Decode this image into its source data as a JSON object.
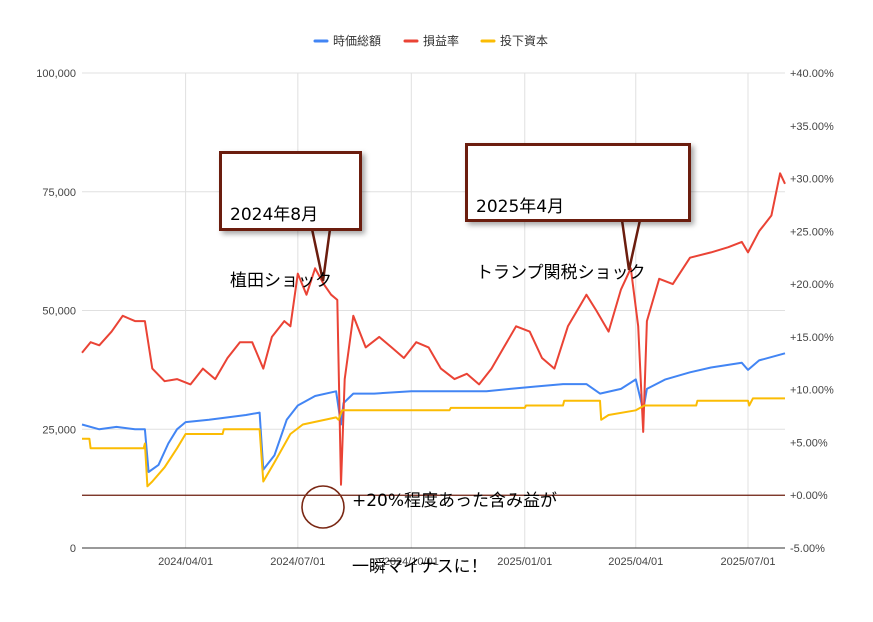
{
  "chart_data": {
    "type": "line",
    "legend": {
      "position": "top",
      "entries": [
        {
          "name": "時価総額",
          "color": "#4285f4"
        },
        {
          "name": "損益率",
          "color": "#ea4335"
        },
        {
          "name": "投下資本",
          "color": "#fbbc04"
        }
      ]
    },
    "x_ticks": [
      "2024/04/01",
      "2024/07/01",
      "2024/10/01",
      "2025/01/01",
      "2025/04/01",
      "2025/07/01"
    ],
    "y_left": {
      "range": [
        0,
        100000
      ],
      "ticks": [
        "100,000",
        "75,000",
        "50,000",
        "25,000",
        "0"
      ]
    },
    "y_right": {
      "range": [
        -5,
        40
      ],
      "ticks": [
        "+40.00%",
        "+35.00%",
        "+30.00%",
        "+25.00%",
        "+20.00%",
        "+15.00%",
        "+10.00%",
        "+5.00%",
        "+0.00%",
        "-5.00%"
      ]
    },
    "x_range": [
      "2024-01-08",
      "2025-07-31"
    ],
    "grid": true,
    "zero_line": {
      "axis": "right",
      "value": 0,
      "color": "#6b1d0e"
    },
    "series": [
      {
        "name": "時価総額",
        "axis": "left",
        "color": "#4285f4",
        "points": [
          [
            "2024-01-08",
            26000
          ],
          [
            "2024-01-22",
            25000
          ],
          [
            "2024-02-05",
            25500
          ],
          [
            "2024-02-20",
            25000
          ],
          [
            "2024-02-28",
            25000
          ],
          [
            "2024-03-02",
            16000
          ],
          [
            "2024-03-10",
            17500
          ],
          [
            "2024-03-18",
            22000
          ],
          [
            "2024-03-25",
            25000
          ],
          [
            "2024-04-01",
            26500
          ],
          [
            "2024-04-20",
            27000
          ],
          [
            "2024-05-05",
            27500
          ],
          [
            "2024-05-20",
            28000
          ],
          [
            "2024-05-31",
            28500
          ],
          [
            "2024-06-03",
            16500
          ],
          [
            "2024-06-12",
            19500
          ],
          [
            "2024-06-22",
            27000
          ],
          [
            "2024-07-01",
            30000
          ],
          [
            "2024-07-15",
            32000
          ],
          [
            "2024-08-01",
            33000
          ],
          [
            "2024-08-05",
            26000
          ],
          [
            "2024-08-07",
            30500
          ],
          [
            "2024-08-15",
            32500
          ],
          [
            "2024-09-01",
            32500
          ],
          [
            "2024-10-01",
            33000
          ],
          [
            "2024-11-01",
            33000
          ],
          [
            "2024-12-01",
            33000
          ],
          [
            "2024-12-20",
            33500
          ],
          [
            "2025-01-10",
            34000
          ],
          [
            "2025-02-01",
            34500
          ],
          [
            "2025-02-20",
            34500
          ],
          [
            "2025-03-03",
            32500
          ],
          [
            "2025-03-20",
            33500
          ],
          [
            "2025-04-01",
            35500
          ],
          [
            "2025-04-07",
            29000
          ],
          [
            "2025-04-10",
            33500
          ],
          [
            "2025-04-25",
            35500
          ],
          [
            "2025-05-15",
            37000
          ],
          [
            "2025-06-01",
            38000
          ],
          [
            "2025-06-26",
            39000
          ],
          [
            "2025-07-01",
            37500
          ],
          [
            "2025-07-10",
            39500
          ],
          [
            "2025-07-31",
            41000
          ]
        ]
      },
      {
        "name": "損益率",
        "axis": "right",
        "color": "#ea4335",
        "points": [
          [
            "2024-01-08",
            13.5
          ],
          [
            "2024-01-15",
            14.5
          ],
          [
            "2024-01-22",
            14.2
          ],
          [
            "2024-02-01",
            15.5
          ],
          [
            "2024-02-10",
            17.0
          ],
          [
            "2024-02-20",
            16.5
          ],
          [
            "2024-02-28",
            16.5
          ],
          [
            "2024-03-05",
            12.0
          ],
          [
            "2024-03-15",
            10.8
          ],
          [
            "2024-03-25",
            11.0
          ],
          [
            "2024-04-05",
            10.5
          ],
          [
            "2024-04-15",
            12.0
          ],
          [
            "2024-04-25",
            11.0
          ],
          [
            "2024-05-05",
            13.0
          ],
          [
            "2024-05-15",
            14.5
          ],
          [
            "2024-05-25",
            14.5
          ],
          [
            "2024-06-03",
            12.0
          ],
          [
            "2024-06-10",
            15.0
          ],
          [
            "2024-06-20",
            16.5
          ],
          [
            "2024-06-25",
            16.0
          ],
          [
            "2024-07-01",
            21.0
          ],
          [
            "2024-07-08",
            19.0
          ],
          [
            "2024-07-15",
            21.5
          ],
          [
            "2024-07-22",
            20.0
          ],
          [
            "2024-07-28",
            19.0
          ],
          [
            "2024-08-02",
            18.5
          ],
          [
            "2024-08-05",
            1.0
          ],
          [
            "2024-08-08",
            11.0
          ],
          [
            "2024-08-15",
            17.0
          ],
          [
            "2024-08-25",
            14.0
          ],
          [
            "2024-09-05",
            15.0
          ],
          [
            "2024-09-15",
            14.0
          ],
          [
            "2024-09-25",
            13.0
          ],
          [
            "2024-10-05",
            14.5
          ],
          [
            "2024-10-15",
            14.0
          ],
          [
            "2024-10-25",
            12.0
          ],
          [
            "2024-11-05",
            11.0
          ],
          [
            "2024-11-15",
            11.5
          ],
          [
            "2024-11-25",
            10.5
          ],
          [
            "2024-12-05",
            12.0
          ],
          [
            "2024-12-15",
            14.0
          ],
          [
            "2024-12-25",
            16.0
          ],
          [
            "2025-01-05",
            15.5
          ],
          [
            "2025-01-15",
            13.0
          ],
          [
            "2025-01-25",
            12.0
          ],
          [
            "2025-02-05",
            16.0
          ],
          [
            "2025-02-15",
            18.0
          ],
          [
            "2025-02-20",
            19.0
          ],
          [
            "2025-02-28",
            17.5
          ],
          [
            "2025-03-10",
            15.5
          ],
          [
            "2025-03-20",
            19.5
          ],
          [
            "2025-03-28",
            21.5
          ],
          [
            "2025-04-03",
            16.0
          ],
          [
            "2025-04-07",
            6.0
          ],
          [
            "2025-04-10",
            16.5
          ],
          [
            "2025-04-20",
            20.5
          ],
          [
            "2025-05-01",
            20.0
          ],
          [
            "2025-05-15",
            22.5
          ],
          [
            "2025-06-01",
            23.0
          ],
          [
            "2025-06-15",
            23.5
          ],
          [
            "2025-06-26",
            24.0
          ],
          [
            "2025-07-01",
            23.0
          ],
          [
            "2025-07-10",
            25.0
          ],
          [
            "2025-07-20",
            26.5
          ],
          [
            "2025-07-27",
            30.5
          ],
          [
            "2025-07-31",
            29.5
          ]
        ]
      },
      {
        "name": "投下資本",
        "axis": "left",
        "color": "#fbbc04",
        "points": [
          [
            "2024-01-08",
            23000
          ],
          [
            "2024-01-14",
            23000
          ],
          [
            "2024-01-15",
            21000
          ],
          [
            "2024-02-27",
            21000
          ],
          [
            "2024-02-28",
            22000
          ],
          [
            "2024-03-01",
            13000
          ],
          [
            "2024-03-05",
            14000
          ],
          [
            "2024-03-15",
            17000
          ],
          [
            "2024-03-25",
            21000
          ],
          [
            "2024-04-01",
            24000
          ],
          [
            "2024-05-01",
            24000
          ],
          [
            "2024-05-02",
            25000
          ],
          [
            "2024-05-31",
            25000
          ],
          [
            "2024-06-03",
            14000
          ],
          [
            "2024-06-12",
            18000
          ],
          [
            "2024-06-25",
            24000
          ],
          [
            "2024-07-05",
            26000
          ],
          [
            "2024-08-01",
            27500
          ],
          [
            "2024-08-03",
            27000
          ],
          [
            "2024-08-06",
            29000
          ],
          [
            "2024-09-01",
            29000
          ],
          [
            "2024-10-01",
            29000
          ],
          [
            "2024-11-01",
            29000
          ],
          [
            "2024-11-02",
            29500
          ],
          [
            "2025-01-01",
            29500
          ],
          [
            "2025-01-02",
            30000
          ],
          [
            "2025-02-01",
            30000
          ],
          [
            "2025-02-02",
            31000
          ],
          [
            "2025-03-03",
            31000
          ],
          [
            "2025-03-04",
            27000
          ],
          [
            "2025-03-10",
            28000
          ],
          [
            "2025-04-01",
            29000
          ],
          [
            "2025-04-08",
            30000
          ],
          [
            "2025-05-20",
            30000
          ],
          [
            "2025-05-21",
            31000
          ],
          [
            "2025-07-01",
            31000
          ],
          [
            "2025-07-02",
            30000
          ],
          [
            "2025-07-05",
            31500
          ],
          [
            "2025-07-31",
            31500
          ]
        ]
      }
    ],
    "annotations": [
      {
        "lines": [
          "2024年8月",
          "植田ショック"
        ]
      },
      {
        "lines": [
          "2025年4月",
          "トランプ関税ショック"
        ]
      },
      {
        "lines": [
          "+20%程度あった含み益が",
          "一瞬マイナスに！"
        ]
      }
    ]
  }
}
